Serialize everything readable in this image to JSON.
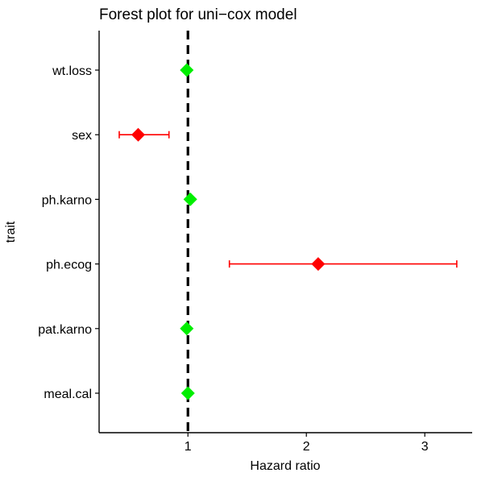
{
  "chart_data": {
    "type": "forest",
    "title": "Forest plot for uni−cox model",
    "xlabel": "Hazard ratio",
    "ylabel": "trait",
    "xlim": [
      0.25,
      3.4
    ],
    "xticks": [
      1,
      2,
      3
    ],
    "xtick_labels": [
      "1",
      "2",
      "3"
    ],
    "reference_line": 1,
    "categories": [
      "wt.loss",
      "sex",
      "ph.karno",
      "ph.ecog",
      "pat.karno",
      "meal.cal"
    ],
    "points": [
      {
        "trait": "wt.loss",
        "hr": 0.99,
        "lower": null,
        "upper": null,
        "color": "#00ee00"
      },
      {
        "trait": "sex",
        "hr": 0.58,
        "lower": 0.42,
        "upper": 0.84,
        "color": "#ff0000"
      },
      {
        "trait": "ph.karno",
        "hr": 1.02,
        "lower": null,
        "upper": null,
        "color": "#00ee00"
      },
      {
        "trait": "ph.ecog",
        "hr": 2.1,
        "lower": 1.35,
        "upper": 3.27,
        "color": "#ff0000"
      },
      {
        "trait": "pat.karno",
        "hr": 0.99,
        "lower": null,
        "upper": null,
        "color": "#00ee00"
      },
      {
        "trait": "meal.cal",
        "hr": 1.0,
        "lower": null,
        "upper": null,
        "color": "#00ee00"
      }
    ],
    "grid": false,
    "legend": "none"
  }
}
